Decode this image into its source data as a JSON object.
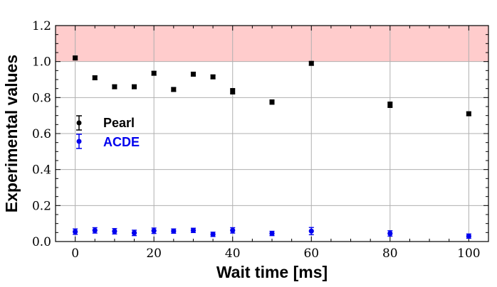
{
  "chart_data": {
    "type": "scatter",
    "xlabel": "Wait time [ms]",
    "ylabel": "Experimental values",
    "xlim": [
      -5,
      105
    ],
    "ylim": [
      0,
      1.2
    ],
    "xticks": [
      "0",
      "20",
      "40",
      "60",
      "80",
      "100"
    ],
    "yticks": [
      "0.0",
      "0.2",
      "0.4",
      "0.6",
      "0.8",
      "1.0",
      "1.2"
    ],
    "grid": true,
    "legend_position": "center-left",
    "shaded_region": {
      "y_from": 1.0,
      "y_to": 1.2,
      "color": "#ffcccc"
    },
    "series": [
      {
        "name": "Pearl",
        "color": "#000000",
        "marker": "square",
        "x": [
          0,
          5,
          10,
          15,
          20,
          25,
          30,
          35,
          40,
          50,
          60,
          80,
          100
        ],
        "y": [
          1.02,
          0.91,
          0.86,
          0.86,
          0.935,
          0.845,
          0.93,
          0.915,
          0.835,
          0.775,
          0.99,
          0.76,
          0.71
        ],
        "err": [
          0.01,
          0.01,
          0.01,
          0.01,
          0.01,
          0.01,
          0.01,
          0.01,
          0.015,
          0.012,
          0.01,
          0.015,
          0.01
        ]
      },
      {
        "name": "ACDE",
        "color": "#0000ee",
        "marker": "circle",
        "x": [
          0,
          5,
          10,
          15,
          20,
          25,
          30,
          35,
          40,
          50,
          60,
          80,
          100
        ],
        "y": [
          0.055,
          0.062,
          0.057,
          0.048,
          0.06,
          0.058,
          0.062,
          0.04,
          0.062,
          0.045,
          0.058,
          0.045,
          0.03
        ],
        "err": [
          0.015,
          0.015,
          0.015,
          0.015,
          0.015,
          0.012,
          0.012,
          0.012,
          0.015,
          0.012,
          0.02,
          0.015,
          0.012
        ]
      }
    ]
  }
}
